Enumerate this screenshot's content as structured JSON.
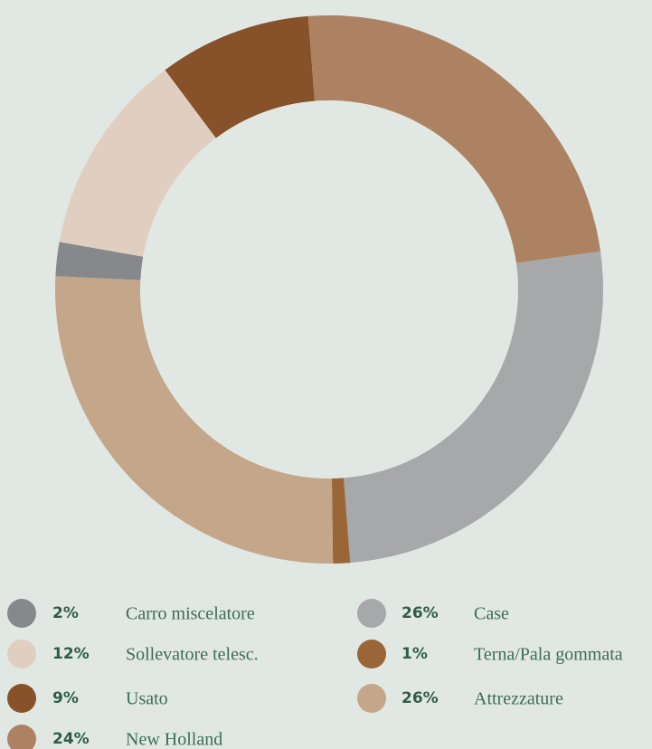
{
  "chart_data": {
    "type": "donut",
    "categories": [
      "Carro miscelatore",
      "Sollevatore telesc.",
      "Usato",
      "New Holland",
      "Case",
      "Terna/Pala gommata",
      "Attrezzature"
    ],
    "values": [
      2,
      12,
      9,
      24,
      26,
      1,
      26
    ],
    "value_labels": [
      "2%",
      "12%",
      "9%",
      "24%",
      "26%",
      "1%",
      "26%"
    ],
    "colors": [
      "#87888b",
      "#e0cfc0",
      "#87512a",
      "#ad8262",
      "#a7a8aa",
      "#9a6638",
      "#c4a68a"
    ]
  }
}
